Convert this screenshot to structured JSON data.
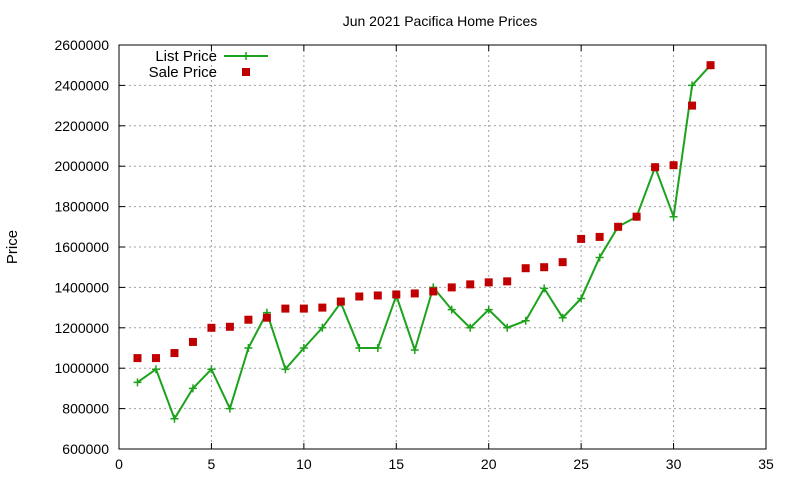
{
  "chart_data": {
    "type": "line",
    "title": "Jun 2021 Pacifica Home Prices",
    "xlabel": "",
    "ylabel": "Price",
    "xlim": [
      0,
      35
    ],
    "ylim": [
      600000,
      2600000
    ],
    "x_ticks": [
      0,
      5,
      10,
      15,
      20,
      25,
      30,
      35
    ],
    "y_ticks": [
      600000,
      800000,
      1000000,
      1200000,
      1400000,
      1600000,
      1800000,
      2000000,
      2200000,
      2400000,
      2600000
    ],
    "x_tick_labels": [
      "0",
      "5",
      "10",
      "15",
      "20",
      "25",
      "30",
      "35"
    ],
    "y_tick_labels": [
      "600000",
      "800000",
      "1000000",
      "1200000",
      "1400000",
      "1600000",
      "1800000",
      "2000000",
      "2200000",
      "2400000",
      "2600000"
    ],
    "grid": true,
    "legend_position": "top-left",
    "x": [
      1,
      2,
      3,
      4,
      5,
      6,
      7,
      8,
      9,
      10,
      11,
      12,
      13,
      14,
      15,
      16,
      17,
      18,
      19,
      20,
      21,
      22,
      23,
      24,
      25,
      26,
      27,
      28,
      29,
      30,
      31,
      32
    ],
    "series": [
      {
        "name": "List Price",
        "style": "line-plus",
        "color": "#1ca21c",
        "values": [
          930000,
          995000,
          750000,
          900000,
          995000,
          800000,
          1100000,
          1275000,
          995000,
          1100000,
          1200000,
          1325000,
          1100000,
          1100000,
          1360000,
          1090000,
          1400000,
          1290000,
          1200000,
          1290000,
          1200000,
          1235000,
          1395000,
          1250000,
          1345000,
          1548000,
          1700000,
          1750000,
          1995000,
          1750000,
          2400000,
          2500000
        ]
      },
      {
        "name": "Sale Price",
        "style": "square-points",
        "color": "#c00000",
        "values": [
          1050000,
          1050000,
          1075000,
          1130000,
          1200000,
          1205000,
          1240000,
          1250000,
          1295000,
          1295000,
          1300000,
          1330000,
          1355000,
          1360000,
          1365000,
          1370000,
          1380000,
          1400000,
          1415000,
          1425000,
          1430000,
          1495000,
          1500000,
          1525000,
          1640000,
          1650000,
          1700000,
          1750000,
          1995000,
          2005000,
          2300000,
          2500000
        ]
      }
    ]
  }
}
